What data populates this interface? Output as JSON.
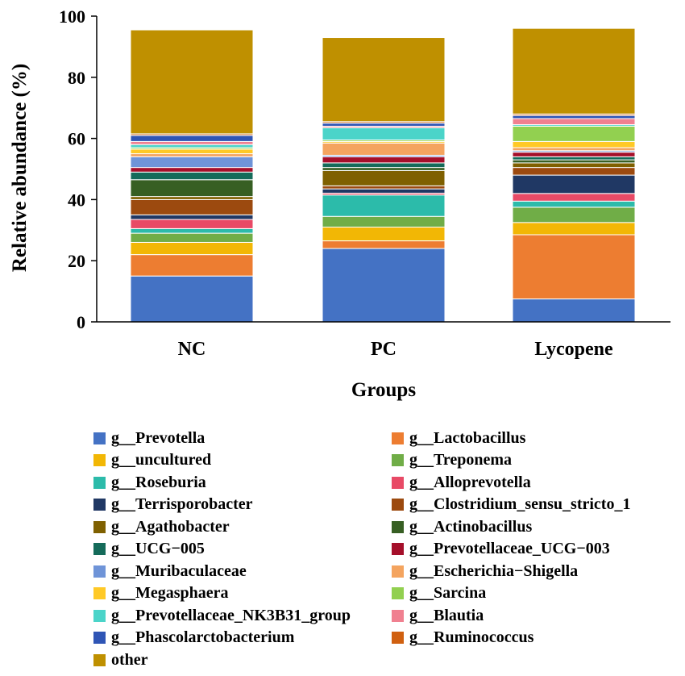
{
  "chart_data": {
    "type": "bar",
    "stacked": true,
    "title": "",
    "xlabel": "Groups",
    "ylabel": "Relative abundance (%)",
    "ylim": [
      0,
      100
    ],
    "yticks": [
      "0",
      "20",
      "40",
      "60",
      "80",
      "100"
    ],
    "categories": [
      "NC",
      "PC",
      "Lycopene"
    ],
    "series": [
      {
        "name": "g__Prevotella",
        "color": "#4472C4",
        "values": [
          15,
          24,
          7.5
        ]
      },
      {
        "name": "g__Lactobacillus",
        "color": "#ED7D31",
        "values": [
          7,
          2.5,
          21
        ]
      },
      {
        "name": "g__uncultured",
        "color": "#F2B705",
        "values": [
          4,
          4.5,
          4
        ]
      },
      {
        "name": "g__Treponema",
        "color": "#70AD47",
        "values": [
          3,
          3.5,
          5
        ]
      },
      {
        "name": "g__Roseburia",
        "color": "#2CBBAA",
        "values": [
          1.5,
          7,
          2
        ]
      },
      {
        "name": "g__Alloprevotella",
        "color": "#E84A66",
        "values": [
          3,
          0.6,
          2.5
        ]
      },
      {
        "name": "g__Terrisporobacter",
        "color": "#203864",
        "values": [
          1.5,
          1.4,
          6
        ]
      },
      {
        "name": "g__Clostridium_sensu_stricto_1",
        "color": "#9C4A0F",
        "values": [
          5,
          1,
          2.5
        ]
      },
      {
        "name": "g__Agathobacter",
        "color": "#7F6000",
        "values": [
          1,
          5,
          1.5
        ]
      },
      {
        "name": "g__Actinobacillus",
        "color": "#375F23",
        "values": [
          5.5,
          1,
          1
        ]
      },
      {
        "name": "g__UCG−005",
        "color": "#156B5A",
        "values": [
          2.5,
          1.5,
          1
        ]
      },
      {
        "name": "g__Prevotellaceae_UCG−003",
        "color": "#A50F2A",
        "values": [
          1.5,
          2,
          1.5
        ]
      },
      {
        "name": "g__Muribaculaceae",
        "color": "#6F94D8",
        "values": [
          3.5,
          0.5,
          0.5
        ]
      },
      {
        "name": "g__Escherichia−Shigella",
        "color": "#F4A45F",
        "values": [
          1,
          4,
          1
        ]
      },
      {
        "name": "g__Megasphaera",
        "color": "#FFC926",
        "values": [
          1.5,
          0.5,
          2
        ]
      },
      {
        "name": "g__Sarcina",
        "color": "#92D050",
        "values": [
          0.5,
          0.5,
          5
        ]
      },
      {
        "name": "g__Prevotellaceae_NK3B31_group",
        "color": "#4BD4C9",
        "values": [
          1,
          4,
          0.5
        ]
      },
      {
        "name": "g__Blautia",
        "color": "#F08090",
        "values": [
          1,
          0.5,
          2
        ]
      },
      {
        "name": "g__Phascolarctobacterium",
        "color": "#2F55B5",
        "values": [
          2,
          1,
          1
        ]
      },
      {
        "name": "g__Ruminococcus",
        "color": "#D06010",
        "values": [
          0.5,
          0.5,
          0.5
        ]
      },
      {
        "name": "other",
        "color": "#BF9000",
        "values": [
          34,
          27.5,
          28
        ]
      }
    ]
  }
}
